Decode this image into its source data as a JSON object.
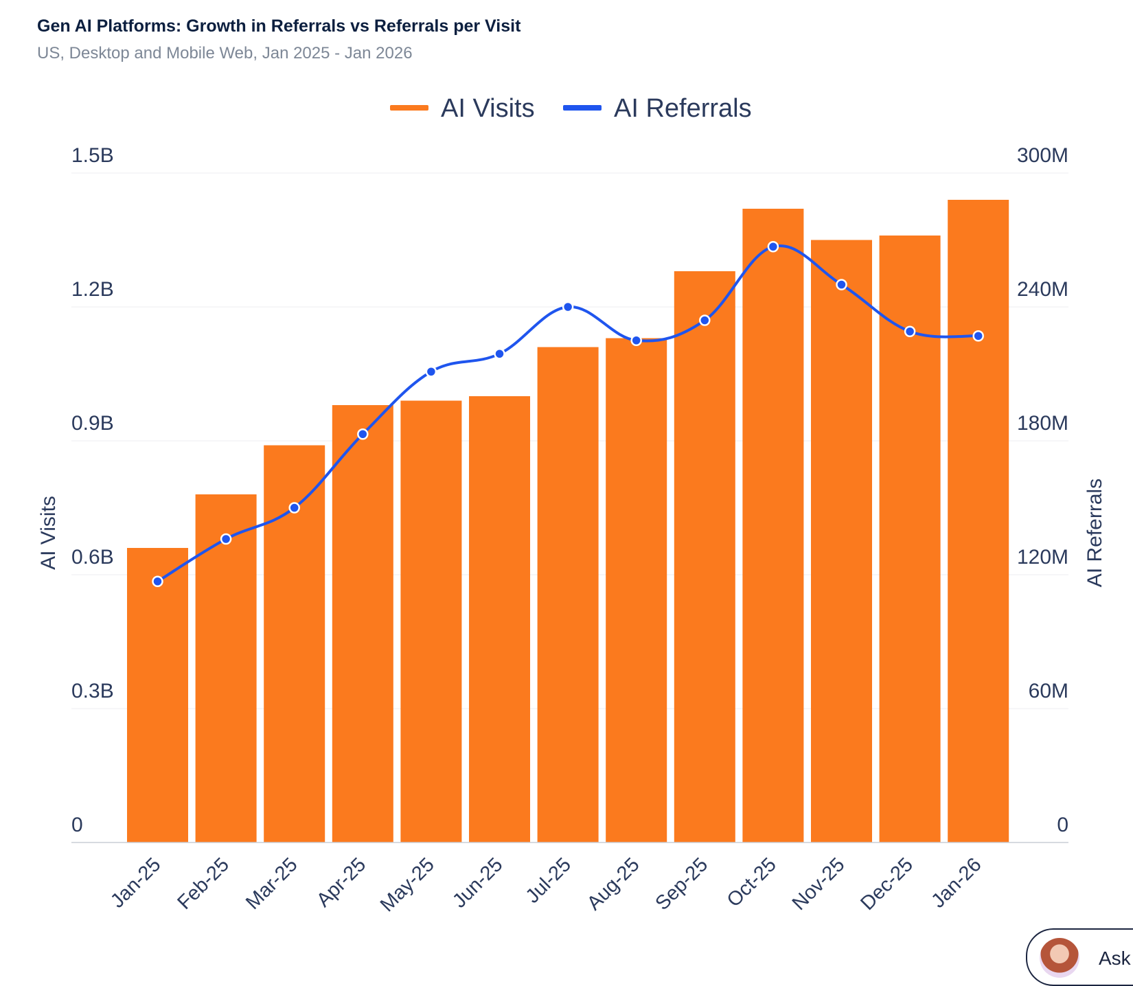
{
  "header": {
    "title": "Gen AI Platforms: Growth in Referrals vs Referrals per Visit",
    "subtitle": "US, Desktop and Mobile Web, Jan 2025 - Jan 2026"
  },
  "ask_button": {
    "label": "Ask"
  },
  "colors": {
    "bars": "#fb7a1e",
    "line": "#1f55ee",
    "text": "#2b3a5c",
    "grid": "#eceef2"
  },
  "chart_data": {
    "type": "bar+line",
    "title": "Gen AI Platforms: Growth in Referrals vs Referrals per Visit",
    "categories": [
      "Jan-25",
      "Feb-25",
      "Mar-25",
      "Apr-25",
      "May-25",
      "Jun-25",
      "Jul-25",
      "Aug-25",
      "Sep-25",
      "Oct-25",
      "Nov-25",
      "Dec-25",
      "Jan-26"
    ],
    "series": [
      {
        "name": "AI Visits",
        "type": "bar",
        "axis": "left",
        "values": [
          0.66,
          0.78,
          0.89,
          0.98,
          0.99,
          1.0,
          1.11,
          1.13,
          1.28,
          1.42,
          1.35,
          1.36,
          1.44
        ]
      },
      {
        "name": "AI Referrals",
        "type": "line",
        "axis": "right",
        "values": [
          117,
          136,
          150,
          183,
          211,
          219,
          240,
          225,
          234,
          267,
          250,
          229,
          227
        ]
      }
    ],
    "left_axis": {
      "label": "AI Visits",
      "range": [
        0,
        1.5
      ],
      "ticks": [
        "0",
        "0.3B",
        "0.6B",
        "0.9B",
        "1.2B",
        "1.5B"
      ]
    },
    "right_axis": {
      "label": "AI Referrals",
      "range": [
        0,
        300
      ],
      "ticks": [
        "0",
        "60M",
        "120M",
        "180M",
        "240M",
        "300M"
      ]
    },
    "legend": [
      "AI Visits",
      "AI Referrals"
    ],
    "legend_position": "top-center",
    "grid": true
  }
}
